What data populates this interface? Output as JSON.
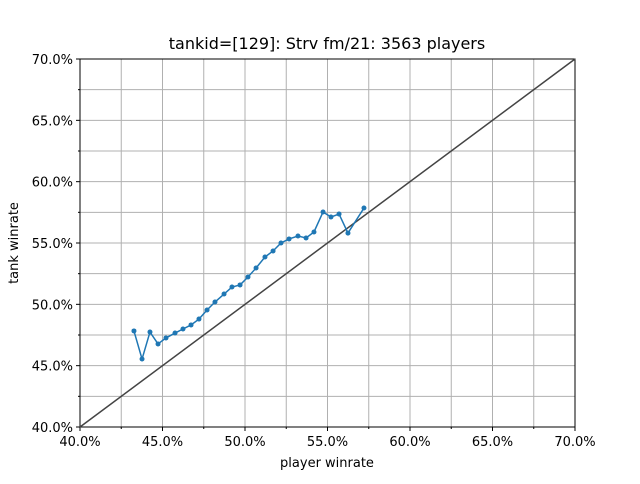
{
  "chart_data": {
    "type": "line",
    "title": "tankid=[129]: Strv fm/21: 3563 players",
    "x_label": "player winrate",
    "y_label": "tank winrate",
    "series": [
      {
        "color": "#1f77b4",
        "x": [
          43.27,
          43.76,
          44.24,
          44.73,
          45.21,
          45.76,
          46.24,
          46.73,
          47.21,
          47.7,
          48.18,
          48.73,
          49.21,
          49.7,
          50.18,
          50.67,
          51.21,
          51.7,
          52.18,
          52.67,
          53.21,
          53.7,
          54.18,
          54.73,
          55.21,
          55.7,
          56.24,
          57.21
        ],
        "values": [
          47.83,
          45.54,
          47.74,
          46.77,
          47.26,
          47.66,
          47.99,
          48.32,
          48.8,
          49.54,
          50.19,
          50.84,
          51.41,
          51.58,
          52.23,
          52.96,
          53.86,
          54.35,
          55.0,
          55.33,
          55.57,
          55.41,
          55.9,
          57.53,
          57.12,
          57.36,
          55.81,
          57.85
        ]
      }
    ],
    "reference_line": {
      "x": [
        40,
        70
      ],
      "y": [
        40,
        70
      ],
      "color": "#444444"
    },
    "xlim": [
      40,
      70
    ],
    "ylim": [
      40,
      70
    ],
    "xticks": [
      {
        "value": 40,
        "label": "40.0%"
      },
      {
        "value": 45,
        "label": "45.0%"
      },
      {
        "value": 50,
        "label": "50.0%"
      },
      {
        "value": 55,
        "label": "55.0%"
      },
      {
        "value": 60,
        "label": "60.0%"
      },
      {
        "value": 65,
        "label": "65.0%"
      },
      {
        "value": 70,
        "label": "70.0%"
      }
    ],
    "yticks": [
      {
        "value": 40,
        "label": "40.0%"
      },
      {
        "value": 45,
        "label": "45.0%"
      },
      {
        "value": 50,
        "label": "50.0%"
      },
      {
        "value": 55,
        "label": "55.0%"
      },
      {
        "value": 60,
        "label": "60.0%"
      },
      {
        "value": 65,
        "label": "65.0%"
      },
      {
        "value": 70,
        "label": "70.0%"
      }
    ],
    "xticks_minor": [
      42.5,
      47.5,
      52.5,
      57.5,
      62.5,
      67.5
    ],
    "yticks_minor": [
      42.5,
      47.5,
      52.5,
      57.5,
      62.5,
      67.5
    ],
    "grid": true
  }
}
